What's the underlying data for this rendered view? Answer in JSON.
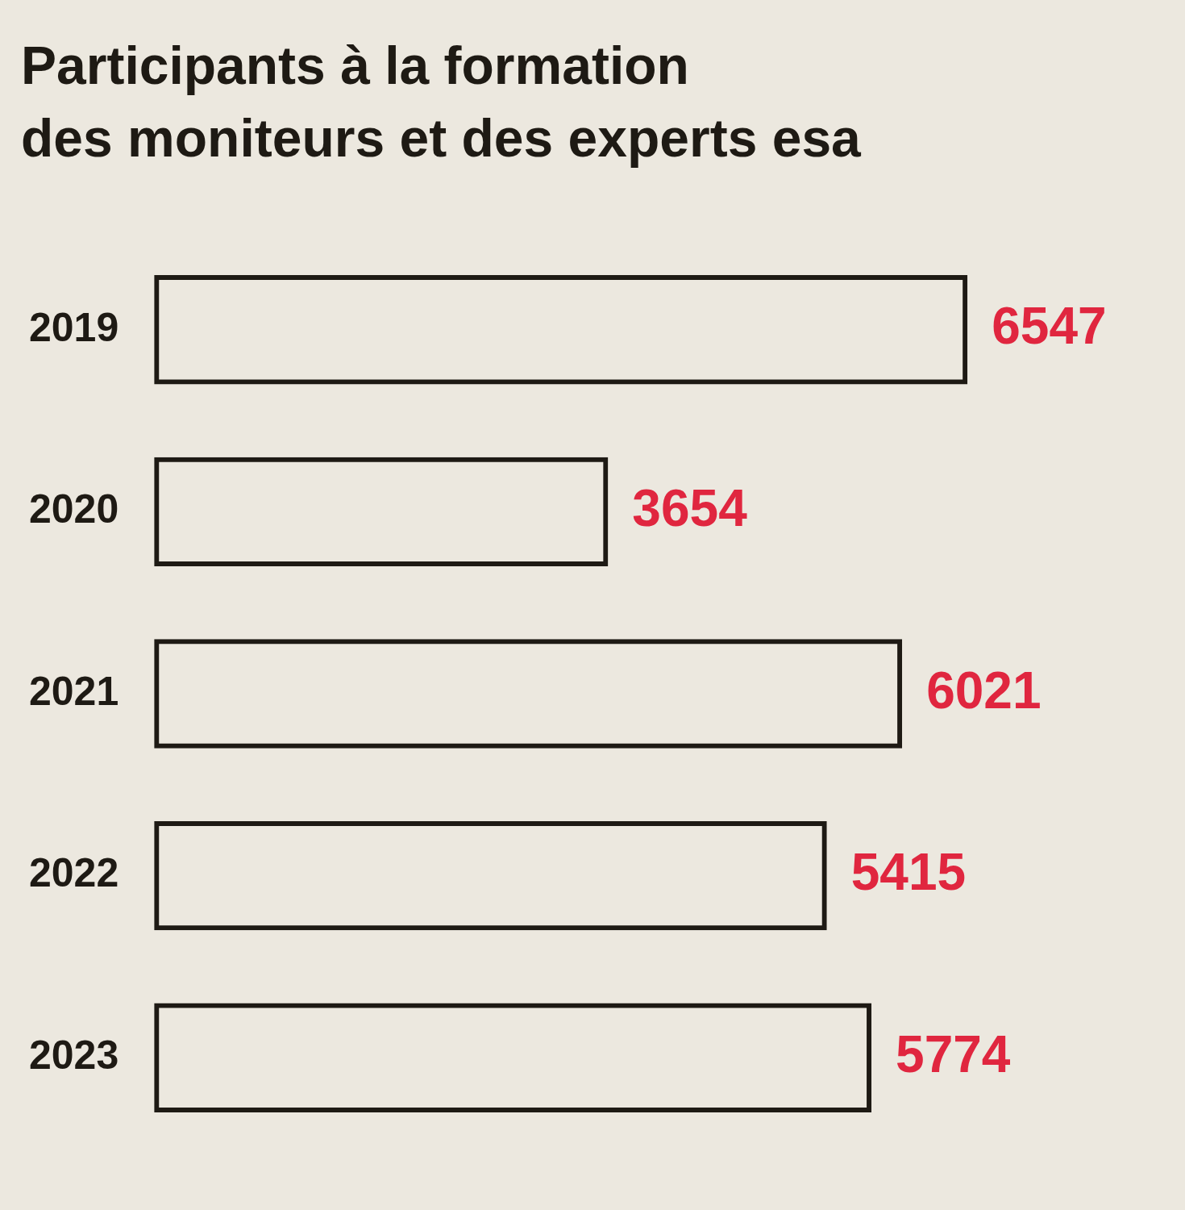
{
  "chart_data": {
    "type": "bar",
    "orientation": "horizontal",
    "title": "Participants à la formation\ndes moniteurs et des experts esa",
    "categories": [
      "2019",
      "2020",
      "2021",
      "2022",
      "2023"
    ],
    "values": [
      6547,
      3654,
      6021,
      5415,
      5774
    ],
    "color": "#1e1a14",
    "data_labels": true,
    "grid": false,
    "legend": false
  }
}
